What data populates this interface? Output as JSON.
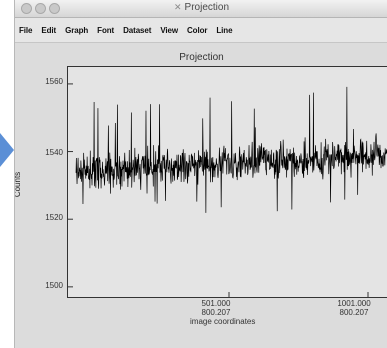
{
  "window": {
    "title": "Projection",
    "title_icon": "x11-icon"
  },
  "menubar": {
    "items": [
      "File",
      "Edit",
      "Graph",
      "Font",
      "Dataset",
      "View",
      "Color",
      "Line"
    ]
  },
  "plot": {
    "title": "Projection",
    "ylabel": "Counts",
    "xlabel": "image coordinates",
    "yticks": [
      "1560",
      "1540",
      "1520",
      "1500"
    ],
    "xticks": [
      {
        "line1": "501.000",
        "line2": "800.207"
      },
      {
        "line1": "1001.000",
        "line2": "800.207"
      }
    ]
  },
  "chart_data": {
    "type": "line",
    "title": "Projection",
    "xlabel": "image coordinates",
    "ylabel": "Counts",
    "xlim": [
      0,
      1120
    ],
    "ylim": [
      1497,
      1565
    ],
    "series": [
      {
        "values_note": "",
        "baseline_start": 1534,
        "baseline_end": 1539
      }
    ],
    "colors": {
      "line": "#000000",
      "plot_bg": "#e4e4e4"
    }
  }
}
